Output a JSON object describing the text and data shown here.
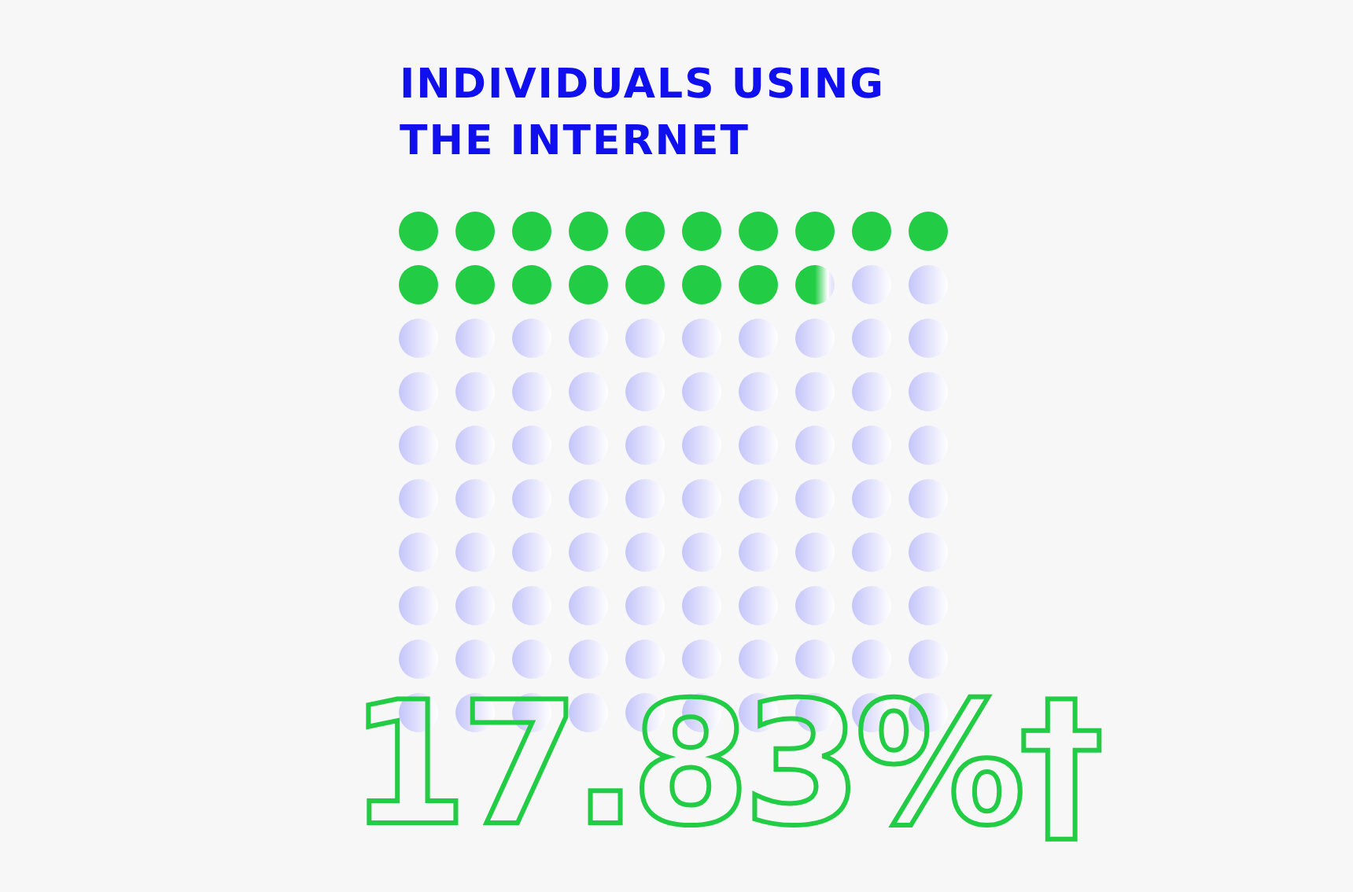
{
  "chart_data": {
    "type": "other",
    "title": "INDIVIDUALS USING THE INTERNET",
    "values": [
      17.83
    ],
    "value_labels": [
      "17.83%†"
    ],
    "color": "#22cc44"
  }
}
